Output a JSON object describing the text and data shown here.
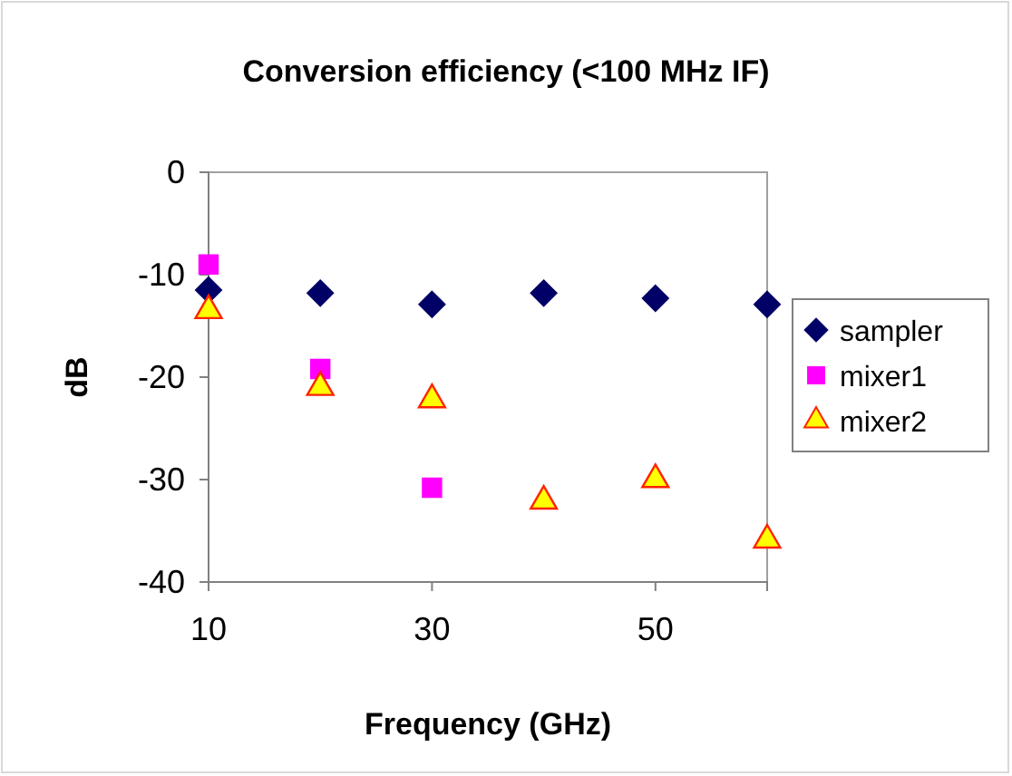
{
  "chart_data": {
    "type": "scatter",
    "title": "Conversion efficiency (<100 MHz IF)",
    "xlabel": "Frequency (GHz)",
    "ylabel": "dB",
    "xlim": [
      10,
      60
    ],
    "xticks": [
      10,
      30,
      50
    ],
    "ylim": [
      -40,
      0
    ],
    "yticks": [
      -40,
      -30,
      -20,
      -10,
      0
    ],
    "grid": false,
    "legend": "right",
    "series": [
      {
        "name": "sampler",
        "color": "#000066",
        "marker": "diamond",
        "x": [
          10,
          20,
          30,
          40,
          50,
          60
        ],
        "values": [
          -11.5,
          -11.8,
          -12.9,
          -11.8,
          -12.3,
          -12.9
        ]
      },
      {
        "name": "mixer1",
        "color": "#ff00ff",
        "marker": "square",
        "x": [
          10,
          20,
          30
        ],
        "values": [
          -9,
          -19.2,
          -30.8
        ]
      },
      {
        "name": "mixer2",
        "color": "#ffff00",
        "marker": "triangle",
        "x": [
          10,
          20,
          30,
          40,
          50,
          60
        ],
        "values": [
          -13.5,
          -21,
          -22.2,
          -32.1,
          -30,
          -35.9
        ]
      }
    ]
  }
}
